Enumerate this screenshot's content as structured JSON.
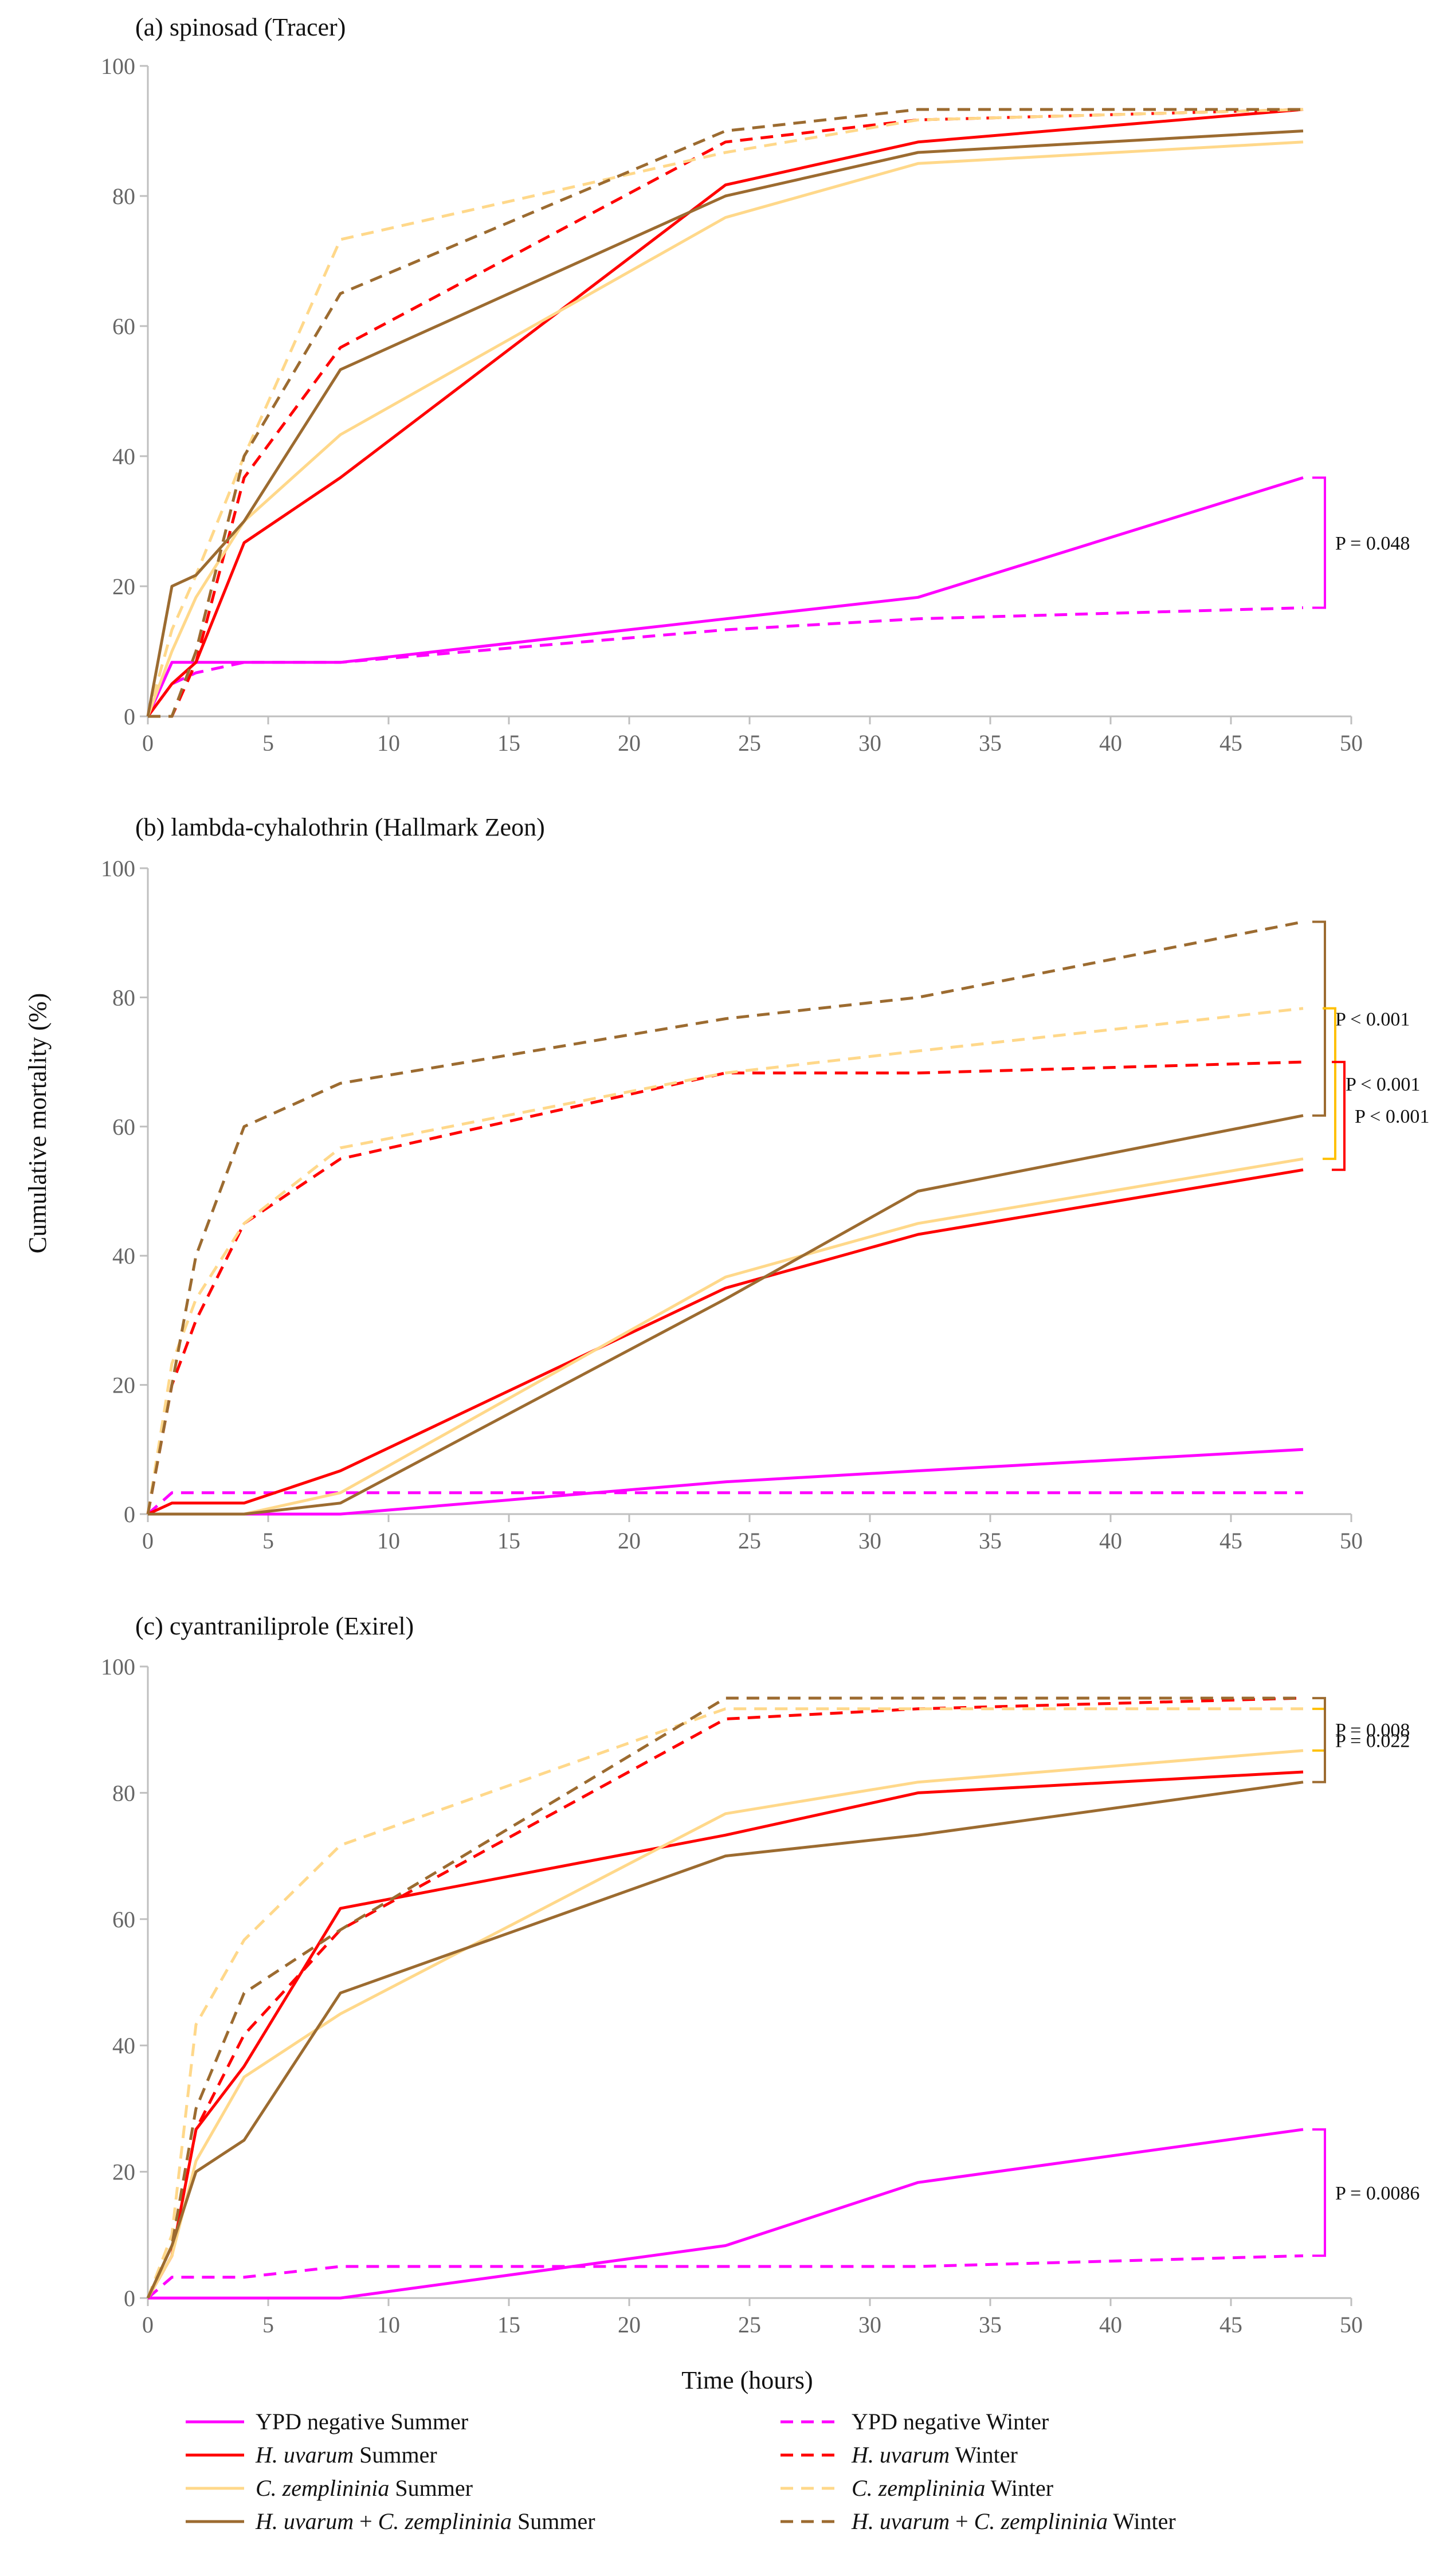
{
  "chart_data": {
    "type": "line",
    "xlabel": "Time (hours)",
    "ylabel": "Cumulative mortality (%)",
    "xlim": [
      0,
      50
    ],
    "ylim": [
      0,
      100
    ],
    "xticks": [
      0,
      5,
      10,
      15,
      20,
      25,
      30,
      35,
      40,
      45,
      50
    ],
    "yticks": [
      0,
      20,
      40,
      60,
      80,
      100
    ],
    "series_styles": [
      {
        "key": "ypd_s",
        "color": "#ff00ff",
        "dash": false
      },
      {
        "key": "ypd_w",
        "color": "#ff00ff",
        "dash": true
      },
      {
        "key": "hu_s",
        "color": "#ff0000",
        "dash": false
      },
      {
        "key": "hu_w",
        "color": "#ff0000",
        "dash": true
      },
      {
        "key": "cz_s",
        "color": "#ffd88a",
        "dash": false
      },
      {
        "key": "cz_w",
        "color": "#ffd88a",
        "dash": true
      },
      {
        "key": "hc_s",
        "color": "#9c6b30",
        "dash": false
      },
      {
        "key": "hc_w",
        "color": "#9c6b30",
        "dash": true
      }
    ],
    "legend": [
      {
        "key": "ypd_s",
        "parts": [
          {
            "t": "YPD negative Summer",
            "i": false
          }
        ]
      },
      {
        "key": "ypd_w",
        "parts": [
          {
            "t": "YPD negative Winter",
            "i": false
          }
        ]
      },
      {
        "key": "hu_s",
        "parts": [
          {
            "t": "H. uvarum",
            "i": true
          },
          {
            "t": " Summer",
            "i": false
          }
        ]
      },
      {
        "key": "hu_w",
        "parts": [
          {
            "t": "H. uvarum",
            "i": true
          },
          {
            "t": " Winter",
            "i": false
          }
        ]
      },
      {
        "key": "cz_s",
        "parts": [
          {
            "t": "C. zemplininia",
            "i": true
          },
          {
            "t": " Summer",
            "i": false
          }
        ]
      },
      {
        "key": "cz_w",
        "parts": [
          {
            "t": "C. zemplininia",
            "i": true
          },
          {
            "t": " Winter",
            "i": false
          }
        ]
      },
      {
        "key": "hc_s",
        "parts": [
          {
            "t": "H. uvarum",
            "i": true
          },
          {
            "t": " + ",
            "i": false
          },
          {
            "t": "C. zemplininia",
            "i": true
          },
          {
            "t": " Summer",
            "i": false
          }
        ]
      },
      {
        "key": "hc_w",
        "parts": [
          {
            "t": "H. uvarum",
            "i": true
          },
          {
            "t": " + ",
            "i": false
          },
          {
            "t": "C. zemplininia",
            "i": true
          },
          {
            "t": " Winter",
            "i": false
          }
        ]
      }
    ],
    "panels": [
      {
        "title": "(a) spinosad (Tracer)",
        "series": {
          "ypd_s": [
            [
              0,
              0
            ],
            [
              1,
              8.3
            ],
            [
              2,
              8.3
            ],
            [
              4,
              8.3
            ],
            [
              8,
              8.3
            ],
            [
              24,
              15
            ],
            [
              32,
              18.3
            ],
            [
              48,
              36.7
            ]
          ],
          "ypd_w": [
            [
              0,
              0
            ],
            [
              1,
              5
            ],
            [
              2,
              6.7
            ],
            [
              4,
              8.3
            ],
            [
              8,
              8.3
            ],
            [
              24,
              13.3
            ],
            [
              32,
              15
            ],
            [
              48,
              16.7
            ]
          ],
          "hu_s": [
            [
              0,
              0
            ],
            [
              1,
              5
            ],
            [
              2,
              8.3
            ],
            [
              4,
              26.7
            ],
            [
              8,
              36.7
            ],
            [
              24,
              81.7
            ],
            [
              32,
              88.3
            ],
            [
              48,
              93.3
            ]
          ],
          "hu_w": [
            [
              0,
              0
            ],
            [
              1,
              0
            ],
            [
              2,
              8.3
            ],
            [
              4,
              36.7
            ],
            [
              8,
              56.7
            ],
            [
              24,
              88.3
            ],
            [
              32,
              91.7
            ],
            [
              48,
              93.3
            ]
          ],
          "cz_s": [
            [
              0,
              0
            ],
            [
              1,
              10
            ],
            [
              2,
              18.3
            ],
            [
              4,
              30
            ],
            [
              8,
              43.3
            ],
            [
              24,
              76.7
            ],
            [
              32,
              85
            ],
            [
              48,
              88.3
            ]
          ],
          "cz_w": [
            [
              0,
              0
            ],
            [
              1,
              13.3
            ],
            [
              2,
              21.7
            ],
            [
              4,
              40
            ],
            [
              8,
              73.3
            ],
            [
              24,
              86.7
            ],
            [
              32,
              91.7
            ],
            [
              48,
              93.3
            ]
          ],
          "hc_s": [
            [
              0,
              0
            ],
            [
              1,
              20
            ],
            [
              2,
              21.7
            ],
            [
              4,
              30
            ],
            [
              8,
              53.3
            ],
            [
              24,
              80
            ],
            [
              32,
              86.7
            ],
            [
              48,
              90
            ]
          ],
          "hc_w": [
            [
              0,
              0
            ],
            [
              1,
              0
            ],
            [
              2,
              10
            ],
            [
              4,
              40
            ],
            [
              8,
              65
            ],
            [
              24,
              90
            ],
            [
              32,
              93.3
            ],
            [
              48,
              93.3
            ]
          ]
        },
        "brackets": [
          {
            "color": "#ff00ff",
            "y1": 36.7,
            "y2": 16.7,
            "label": "P = 0.048"
          }
        ]
      },
      {
        "title": "(b) lambda-cyhalothrin (Hallmark Zeon)",
        "series": {
          "ypd_s": [
            [
              0,
              0
            ],
            [
              1,
              0
            ],
            [
              2,
              0
            ],
            [
              4,
              0
            ],
            [
              8,
              0
            ],
            [
              24,
              5
            ],
            [
              32,
              6.7
            ],
            [
              48,
              10
            ]
          ],
          "ypd_w": [
            [
              0,
              0
            ],
            [
              1,
              3.3
            ],
            [
              2,
              3.3
            ],
            [
              4,
              3.3
            ],
            [
              8,
              3.3
            ],
            [
              24,
              3.3
            ],
            [
              32,
              3.3
            ],
            [
              48,
              3.3
            ]
          ],
          "hu_s": [
            [
              0,
              0
            ],
            [
              1,
              1.7
            ],
            [
              2,
              1.7
            ],
            [
              4,
              1.7
            ],
            [
              8,
              6.7
            ],
            [
              24,
              35
            ],
            [
              32,
              43.3
            ],
            [
              48,
              53.3
            ]
          ],
          "hu_w": [
            [
              0,
              0
            ],
            [
              1,
              20
            ],
            [
              2,
              30
            ],
            [
              4,
              45
            ],
            [
              8,
              55
            ],
            [
              24,
              68.3
            ],
            [
              32,
              68.3
            ],
            [
              48,
              70
            ]
          ],
          "cz_s": [
            [
              0,
              0
            ],
            [
              1,
              0
            ],
            [
              2,
              0
            ],
            [
              4,
              0
            ],
            [
              8,
              3.3
            ],
            [
              24,
              36.7
            ],
            [
              32,
              45
            ],
            [
              48,
              55
            ]
          ],
          "cz_w": [
            [
              0,
              0
            ],
            [
              1,
              23.3
            ],
            [
              2,
              33.3
            ],
            [
              4,
              45
            ],
            [
              8,
              56.7
            ],
            [
              24,
              68.3
            ],
            [
              32,
              71.7
            ],
            [
              48,
              78.3
            ]
          ],
          "hc_s": [
            [
              0,
              0
            ],
            [
              1,
              0
            ],
            [
              2,
              0
            ],
            [
              4,
              0
            ],
            [
              8,
              1.7
            ],
            [
              24,
              33.3
            ],
            [
              32,
              50
            ],
            [
              48,
              61.7
            ]
          ],
          "hc_w": [
            [
              0,
              0
            ],
            [
              1,
              20
            ],
            [
              2,
              40
            ],
            [
              4,
              60
            ],
            [
              8,
              66.7
            ],
            [
              24,
              76.7
            ],
            [
              32,
              80
            ],
            [
              48,
              91.7
            ]
          ]
        },
        "brackets": [
          {
            "color": "#9c6b30",
            "y1": 91.7,
            "y2": 61.7,
            "label": "P < 0.001"
          },
          {
            "color": "#ffc000",
            "y1": 78.3,
            "y2": 55,
            "label": "P < 0.001"
          },
          {
            "color": "#ff0000",
            "y1": 70,
            "y2": 53.3,
            "label": "P < 0.001"
          }
        ]
      },
      {
        "title": "(c) cyantraniliprole (Exirel)",
        "series": {
          "ypd_s": [
            [
              0,
              0
            ],
            [
              1,
              0
            ],
            [
              2,
              0
            ],
            [
              4,
              0
            ],
            [
              8,
              0
            ],
            [
              24,
              8.3
            ],
            [
              32,
              18.3
            ],
            [
              48,
              26.7
            ]
          ],
          "ypd_w": [
            [
              0,
              0
            ],
            [
              1,
              3.3
            ],
            [
              2,
              3.3
            ],
            [
              4,
              3.3
            ],
            [
              8,
              5
            ],
            [
              24,
              5
            ],
            [
              32,
              5
            ],
            [
              48,
              6.7
            ]
          ],
          "hu_s": [
            [
              0,
              0
            ],
            [
              1,
              6.7
            ],
            [
              2,
              26.7
            ],
            [
              4,
              36.7
            ],
            [
              8,
              61.7
            ],
            [
              24,
              73.3
            ],
            [
              32,
              80
            ],
            [
              48,
              83.3
            ]
          ],
          "hu_w": [
            [
              0,
              0
            ],
            [
              1,
              6.7
            ],
            [
              2,
              26.7
            ],
            [
              4,
              41.7
            ],
            [
              8,
              58.3
            ],
            [
              24,
              91.7
            ],
            [
              32,
              93.3
            ],
            [
              48,
              95
            ]
          ],
          "cz_s": [
            [
              0,
              0
            ],
            [
              1,
              6.7
            ],
            [
              2,
              21.7
            ],
            [
              4,
              35
            ],
            [
              8,
              45
            ],
            [
              24,
              76.7
            ],
            [
              32,
              81.7
            ],
            [
              48,
              86.7
            ]
          ],
          "cz_w": [
            [
              0,
              0
            ],
            [
              1,
              10
            ],
            [
              2,
              43.3
            ],
            [
              4,
              56.7
            ],
            [
              8,
              71.7
            ],
            [
              24,
              93.3
            ],
            [
              32,
              93.3
            ],
            [
              48,
              93.3
            ]
          ],
          "hc_s": [
            [
              0,
              0
            ],
            [
              1,
              8.3
            ],
            [
              2,
              20
            ],
            [
              4,
              25
            ],
            [
              8,
              48.3
            ],
            [
              24,
              70
            ],
            [
              32,
              73.3
            ],
            [
              48,
              81.7
            ]
          ],
          "hc_w": [
            [
              0,
              0
            ],
            [
              1,
              8.3
            ],
            [
              2,
              30
            ],
            [
              4,
              48.3
            ],
            [
              8,
              58.3
            ],
            [
              24,
              95
            ],
            [
              32,
              95
            ],
            [
              48,
              95
            ]
          ]
        },
        "brackets": [
          {
            "color": "#ffc000",
            "y1": 93.3,
            "y2": 86.7,
            "label": "P = 0.008"
          },
          {
            "color": "#9c6b30",
            "y1": 95,
            "y2": 81.7,
            "label": "P = 0.022"
          },
          {
            "color": "#ff00ff",
            "y1": 26.7,
            "y2": 6.7,
            "label": "P = 0.0086"
          }
        ]
      }
    ]
  }
}
